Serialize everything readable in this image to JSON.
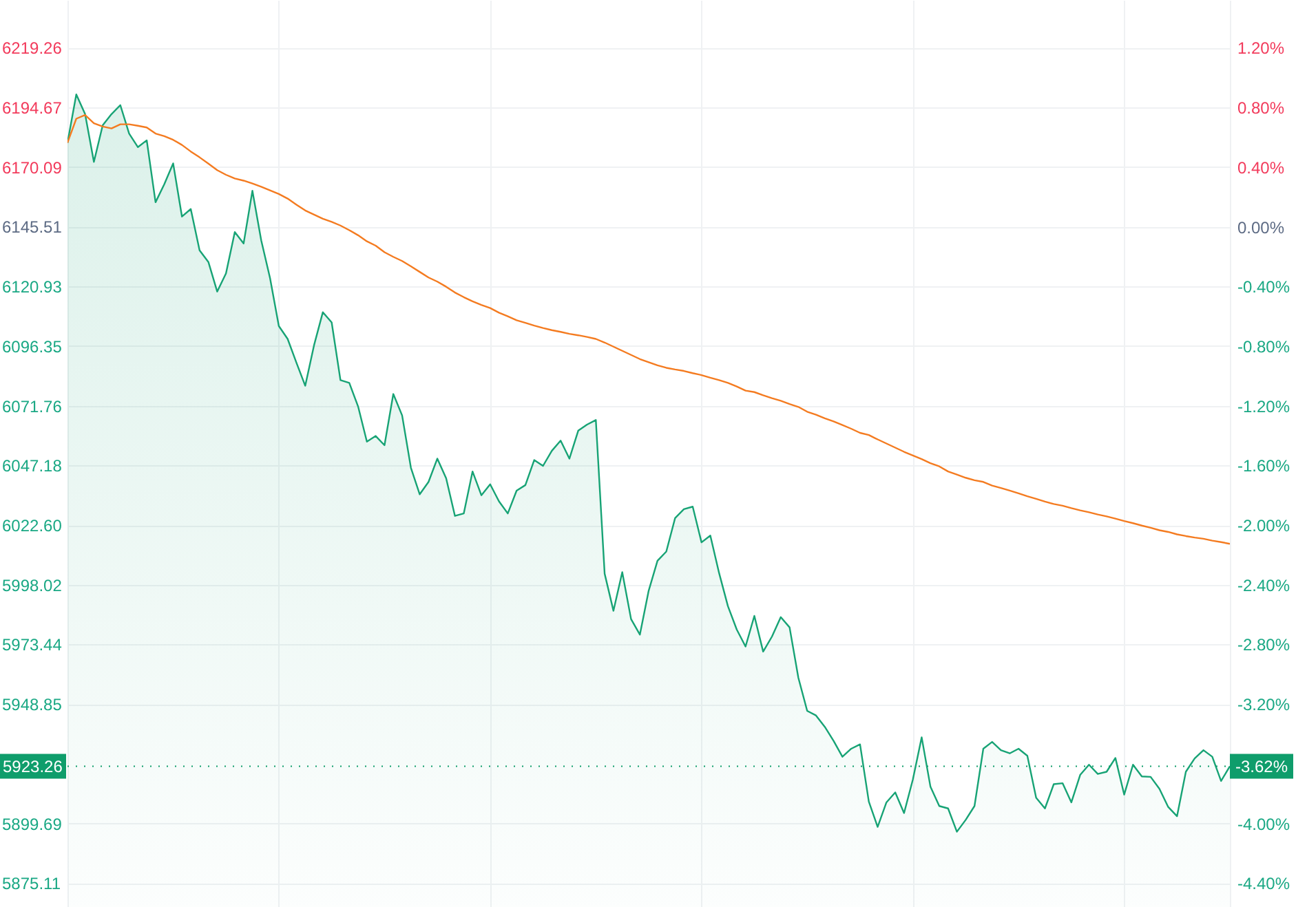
{
  "chart_data": {
    "type": "area",
    "categories": [
      null,
      null,
      null,
      null,
      null,
      null,
      null,
      null,
      null,
      null,
      null,
      null,
      null,
      null,
      null,
      null,
      null,
      null,
      null,
      null,
      null,
      null,
      null,
      null,
      null,
      null,
      null,
      null,
      null,
      null,
      null,
      null,
      null,
      null,
      null,
      null,
      null,
      null,
      null,
      null,
      null,
      null,
      null,
      null,
      null,
      null,
      null,
      null,
      null,
      null,
      null,
      null,
      null,
      null,
      null,
      null,
      null,
      null,
      null,
      null,
      null,
      null,
      null,
      null,
      null,
      null,
      null,
      null,
      null,
      null,
      null,
      null,
      null,
      null,
      null,
      null,
      null,
      null,
      null,
      null,
      null,
      null,
      null,
      null,
      null,
      null,
      null,
      null,
      null,
      null,
      null,
      null,
      null,
      null,
      null,
      null,
      null,
      null,
      null,
      null,
      null,
      null,
      null,
      null,
      null,
      null,
      null,
      null,
      null,
      null,
      null,
      null,
      null,
      null,
      null,
      null,
      null,
      null,
      null,
      null,
      null,
      null,
      null,
      null,
      null,
      null,
      null,
      null,
      null,
      null,
      null,
      null,
      null
    ],
    "series": [
      {
        "color": "#17a375",
        "values": [
          6180.1,
          6200.0,
          6191.9,
          6172.2,
          6187.3,
          6191.9,
          6195.6,
          6183.9,
          6178.3,
          6181.1,
          6155.6,
          6163.1,
          6171.6,
          6149.7,
          6152.8,
          6135.8,
          6131.0,
          6118.8,
          6126.3,
          6143.3,
          6138.6,
          6160.3,
          6139.9,
          6124.4,
          6104.6,
          6099.3,
          6089.5,
          6080.0,
          6096.7,
          6110.3,
          6106.1,
          6082.3,
          6081.2,
          6071.5,
          6057.0,
          6059.3,
          6055.5,
          6076.6,
          6067.8,
          6046.2,
          6035.3,
          6040.4,
          6050.0,
          6041.9,
          6026.4,
          6027.4,
          6044.7,
          6034.9,
          6039.4,
          6032.4,
          6027.4,
          6036.8,
          6039.1,
          6049.4,
          6047.0,
          6053.2,
          6057.4,
          6050.0,
          6061.5,
          6064.0,
          6065.9,
          6002.6,
          5987.3,
          6003.2,
          5983.9,
          5977.5,
          5995.6,
          6007.9,
          6011.7,
          6025.5,
          6029.2,
          6030.2,
          6015.5,
          6018.3,
          6002.8,
          5989.2,
          5979.6,
          5972.6,
          5985.2,
          5970.5,
          5976.7,
          5984.7,
          5980.5,
          5959.7,
          5946.1,
          5944.2,
          5939.5,
          5933.7,
          5927.2,
          5930.5,
          5932.3,
          5908.7,
          5898.3,
          5908.4,
          5912.5,
          5904.0,
          5917.8,
          5935.2,
          5914.8,
          5906.9,
          5905.9,
          5896.3,
          5901.2,
          5906.9,
          5930.5,
          5933.3,
          5929.9,
          5928.6,
          5930.5,
          5927.6,
          5910.3,
          5905.9,
          5915.9,
          5916.3,
          5908.4,
          5919.7,
          5923.9,
          5920.1,
          5921.0,
          5926.7,
          5911.6,
          5923.9,
          5919.1,
          5918.9,
          5914.0,
          5906.5,
          5902.7,
          5921.0,
          5926.5,
          5929.9,
          5927.2,
          5917.2,
          5923.3
        ]
      },
      {
        "type": "line",
        "color": "#f47b20",
        "values": [
          6180.1,
          6190.0,
          6191.5,
          6188.1,
          6186.8,
          6186.0,
          6187.7,
          6187.7,
          6187.1,
          6186.4,
          6183.9,
          6182.8,
          6181.3,
          6179.2,
          6176.5,
          6174.1,
          6171.5,
          6168.8,
          6166.9,
          6165.4,
          6164.5,
          6163.3,
          6162.0,
          6160.5,
          6159.0,
          6157.1,
          6154.6,
          6152.2,
          6150.5,
          6148.8,
          6147.5,
          6146.0,
          6144.1,
          6142.0,
          6139.5,
          6137.7,
          6135.0,
          6133.1,
          6131.4,
          6129.2,
          6126.9,
          6124.6,
          6122.9,
          6120.8,
          6118.4,
          6116.5,
          6114.8,
          6113.3,
          6112.0,
          6110.1,
          6108.6,
          6107.0,
          6105.9,
          6104.8,
          6103.8,
          6102.9,
          6102.2,
          6101.4,
          6100.8,
          6100.1,
          6099.3,
          6097.8,
          6096.1,
          6094.4,
          6092.7,
          6091.0,
          6089.7,
          6088.4,
          6087.4,
          6086.7,
          6086.1,
          6085.2,
          6084.4,
          6083.3,
          6082.3,
          6081.2,
          6079.7,
          6078.0,
          6077.4,
          6076.1,
          6074.9,
          6073.8,
          6072.5,
          6071.3,
          6069.3,
          6068.1,
          6066.6,
          6065.3,
          6063.8,
          6062.3,
          6060.6,
          6059.7,
          6057.9,
          6056.2,
          6054.5,
          6052.8,
          6051.3,
          6049.8,
          6048.1,
          6046.8,
          6044.7,
          6043.4,
          6042.1,
          6041.1,
          6040.4,
          6038.9,
          6037.9,
          6036.8,
          6035.7,
          6034.5,
          6033.4,
          6032.3,
          6031.3,
          6030.6,
          6029.6,
          6028.7,
          6027.9,
          6027.0,
          6026.2,
          6025.3,
          6024.3,
          6023.4,
          6022.4,
          6021.5,
          6020.5,
          6019.8,
          6018.8,
          6018.1,
          6017.5,
          6017.0,
          6016.2,
          6015.6,
          6014.9
        ]
      }
    ],
    "ylim": [
      5865.3,
      6238.9
    ],
    "yticks": [
      6219.26,
      6194.67,
      6170.09,
      6145.51,
      6120.93,
      6096.35,
      6071.76,
      6047.18,
      {
        "value": 6022.6,
        "label": "6022.60"
      },
      5998.02,
      5973.44,
      5948.85,
      5899.69,
      5875.11
    ],
    "y2lim": [
      -4.56,
      1.52
    ],
    "y2ticks": [
      {
        "value": 1.2,
        "label": "1.20%"
      },
      {
        "value": 0.8,
        "label": "0.80%"
      },
      {
        "value": 0.4,
        "label": "0.40%"
      },
      {
        "value": 0,
        "label": "0.00%"
      },
      {
        "value": -0.4,
        "label": "-0.40%"
      },
      {
        "value": -0.8,
        "label": "-0.80%"
      },
      {
        "value": -1.2,
        "label": "-1.20%"
      },
      {
        "value": -1.6,
        "label": "-1.60%"
      },
      {
        "value": -2.0,
        "label": "-2.00%"
      },
      {
        "value": -2.4,
        "label": "-2.40%"
      },
      {
        "value": -2.8,
        "label": "-2.80%"
      },
      {
        "value": -3.2,
        "label": "-3.20%"
      },
      {
        "value": -4.0,
        "label": "-4.00%"
      },
      {
        "value": -4.4,
        "label": "-4.40%"
      }
    ],
    "ref_lines": [
      {
        "axis": "y",
        "value": 5923.26,
        "label": "5923.26",
        "color": "#0f9d6b",
        "line_style": "dotted"
      }
    ],
    "annotations": [
      "-3.62%"
    ],
    "grid": true,
    "tick_labels": "y"
  }
}
